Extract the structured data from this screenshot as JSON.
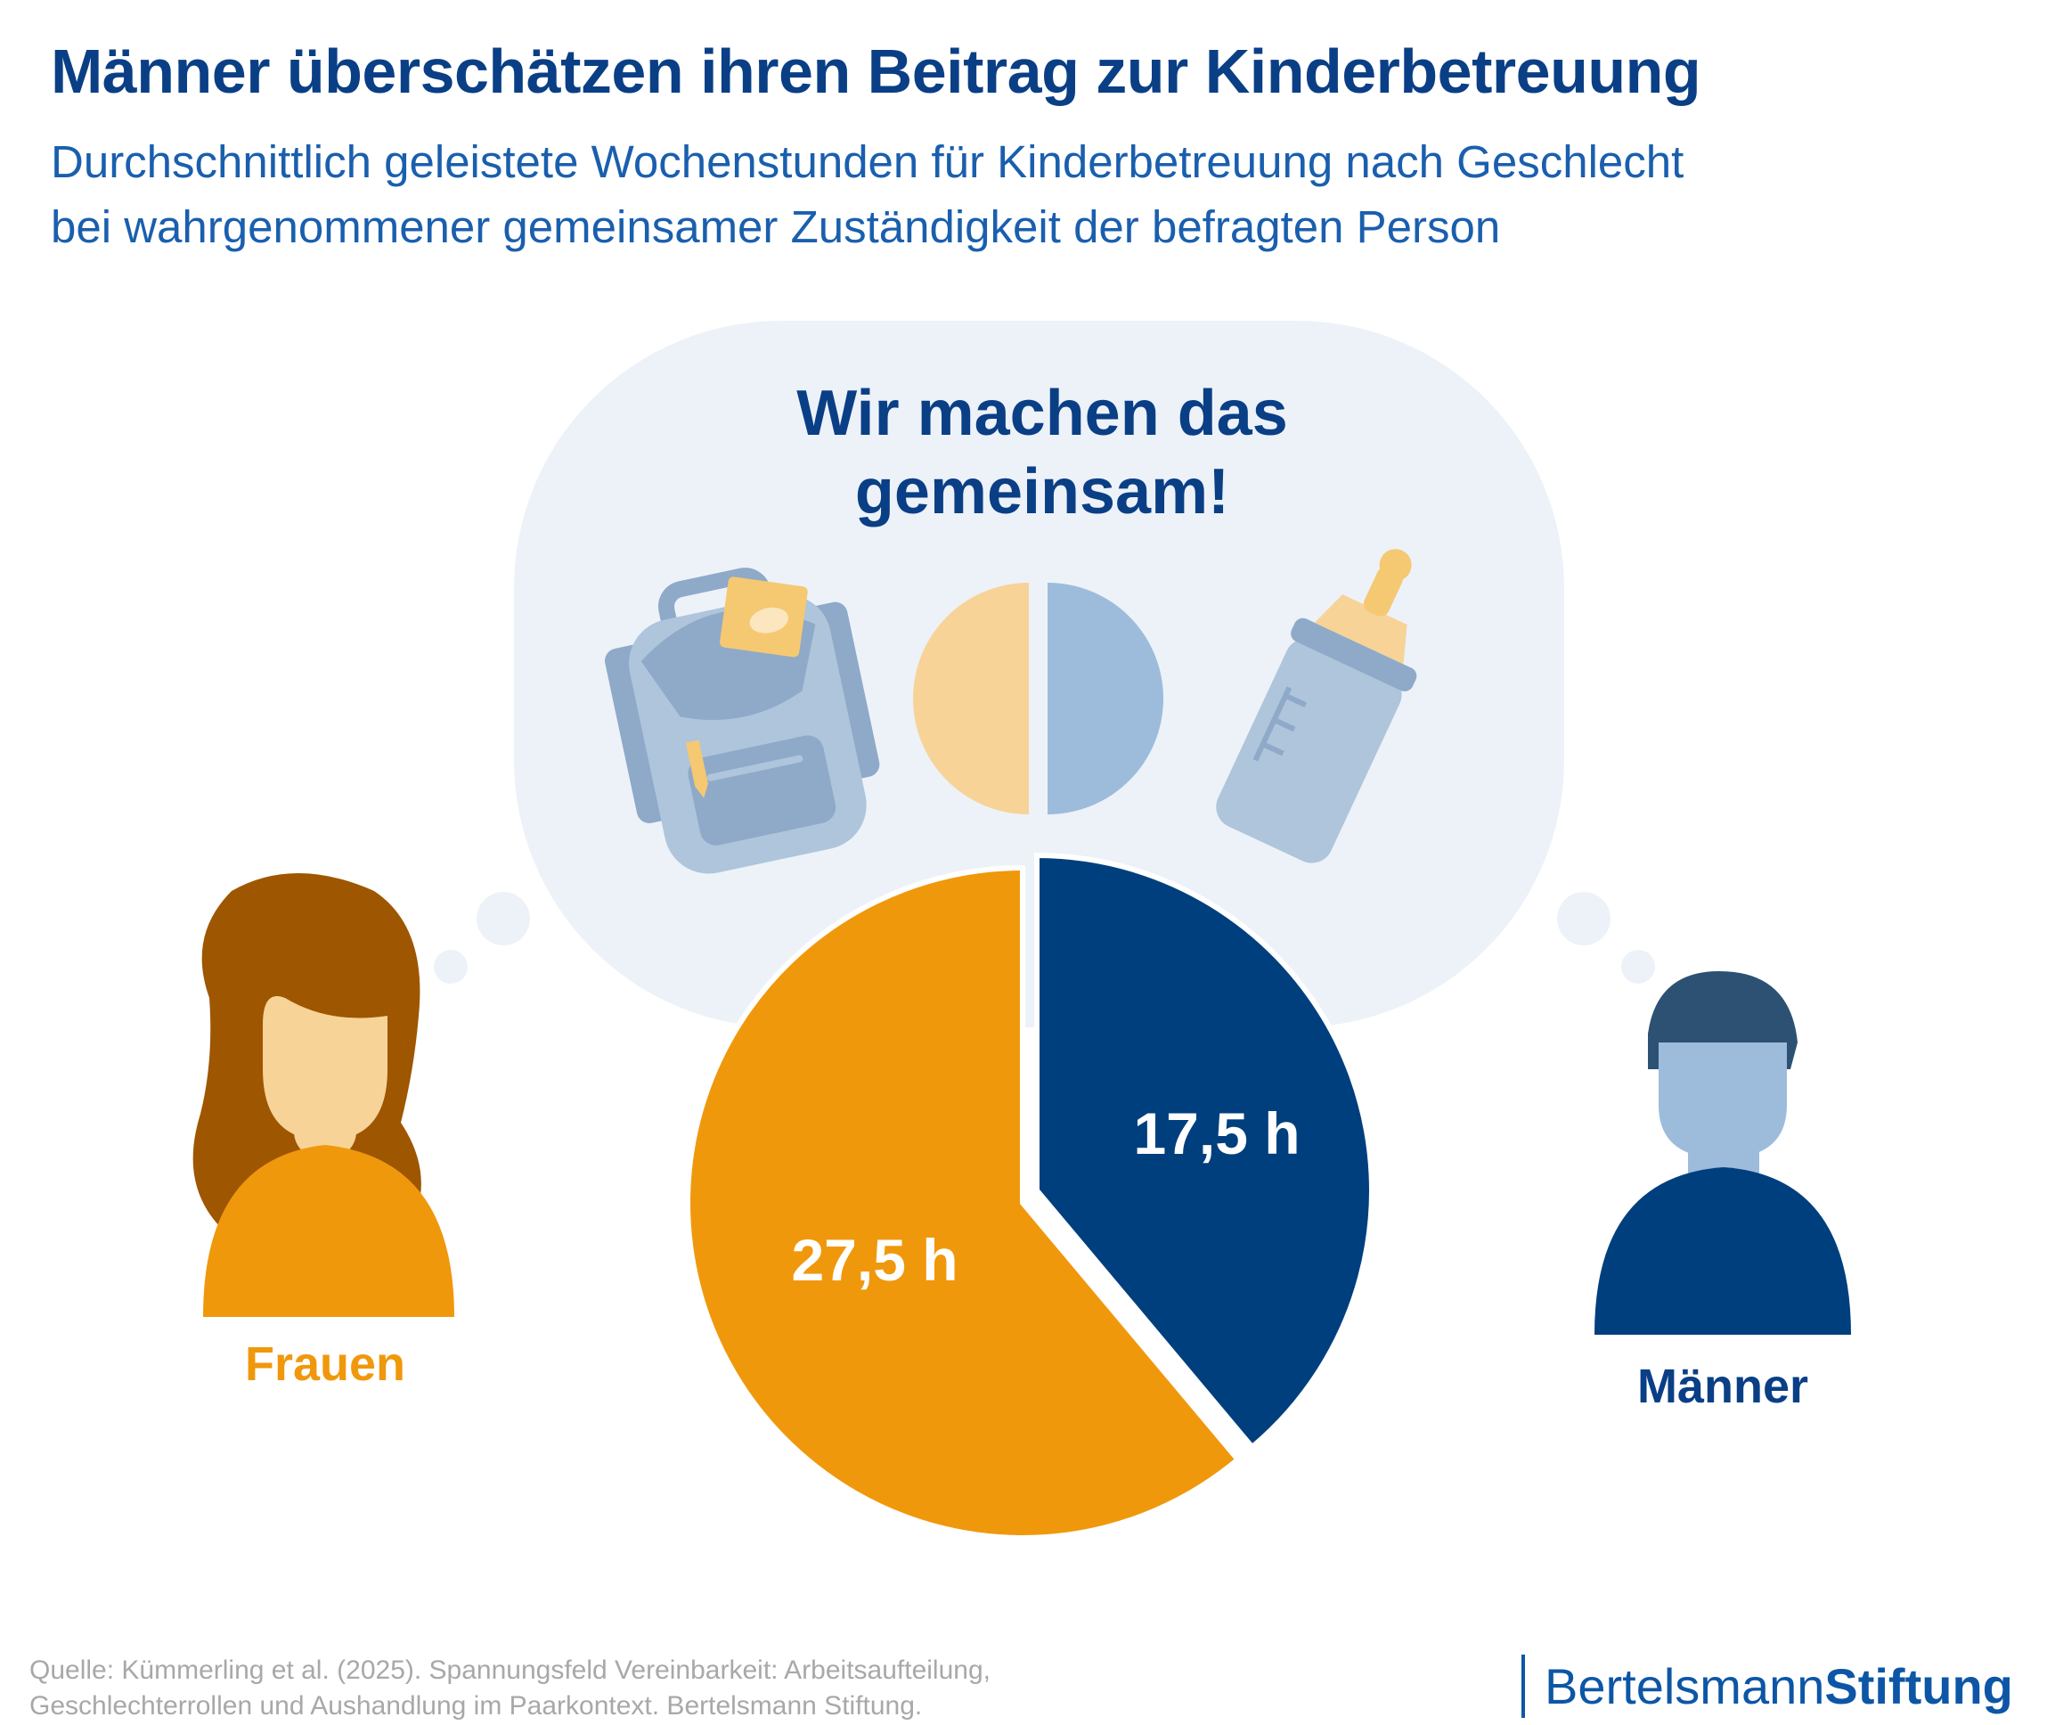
{
  "header": {
    "title": "Männer überschätzen ihren Beitrag zur Kinderbetreuung",
    "subtitle_line1": "Durchschnittlich geleistete Wochenstunden für Kinderbetreuung nach Geschlecht",
    "subtitle_line2": "bei wahrgenommener gemeinsamer Zuständigkeit der befragten Person"
  },
  "bubble": {
    "line1": "Wir machen das",
    "line2": "gemeinsam!"
  },
  "groups": {
    "women": "Frauen",
    "men": "Männer"
  },
  "chart_data": {
    "type": "pie",
    "title": "Männer überschätzen ihren Beitrag zur Kinderbetreuung",
    "categories": [
      "Frauen",
      "Männer"
    ],
    "values": [
      27.5,
      17.5
    ],
    "unit": "h",
    "labels": [
      "27,5 h",
      "17,5 h"
    ],
    "colors": [
      "#f0980c",
      "#003f7e"
    ]
  },
  "footer": {
    "source_line1": "Quelle: Kümmerling et al. (2025). Spannungsfeld Vereinbarkeit: Arbeitsaufteilung,",
    "source_line2": "Geschlechterrollen und Aushandlung im Paarkontext. Bertelsmann Stiftung.",
    "logo_regular": "Bertelsmann",
    "logo_bold": "Stiftung"
  }
}
